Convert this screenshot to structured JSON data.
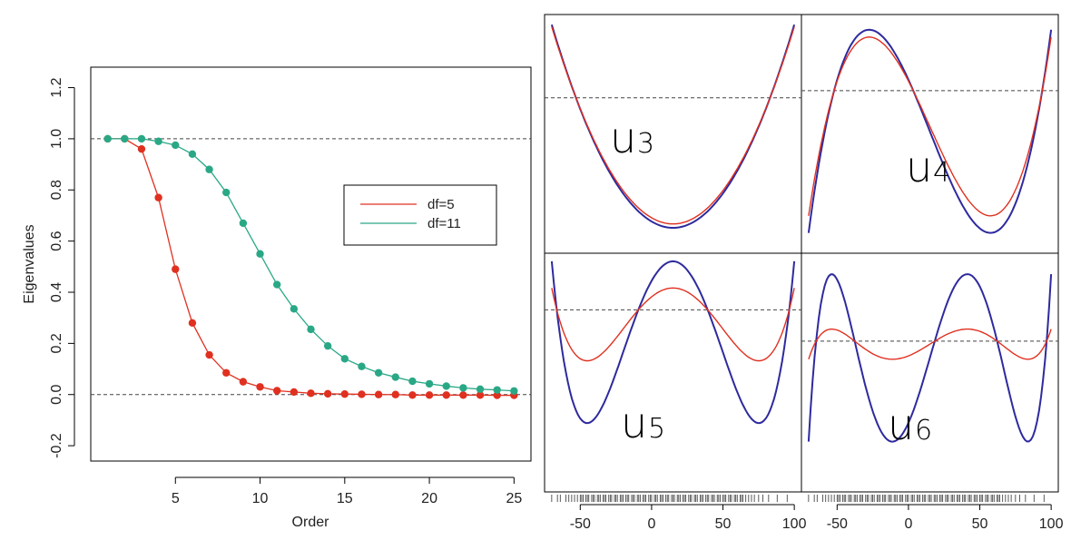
{
  "chart_data": [
    {
      "type": "line",
      "xlabel": "Order",
      "ylabel": "Eigenvalues",
      "xlim": [
        0,
        26
      ],
      "ylim": [
        -0.26,
        1.28
      ],
      "xticks": [
        5,
        10,
        15,
        20,
        25
      ],
      "yticks": [
        -0.2,
        0.0,
        0.2,
        0.4,
        0.6,
        0.8,
        1.0,
        1.2
      ],
      "xtick_labels": [
        "5",
        "10",
        "15",
        "20",
        "25"
      ],
      "ytick_labels": [
        "-0.2",
        "0.0",
        "0.2",
        "0.4",
        "0.6",
        "0.8",
        "1.0",
        "1.2"
      ],
      "reference_lines": [
        1.0,
        0.0
      ],
      "legend_position": "center-right",
      "x": [
        1,
        2,
        3,
        4,
        5,
        6,
        7,
        8,
        9,
        10,
        11,
        12,
        13,
        14,
        15,
        16,
        17,
        18,
        19,
        20,
        21,
        22,
        23,
        24,
        25
      ],
      "series": [
        {
          "name": "df=5",
          "color": "#e03020",
          "values": [
            1.0,
            1.0,
            0.96,
            0.77,
            0.49,
            0.28,
            0.155,
            0.085,
            0.05,
            0.03,
            0.015,
            0.01,
            0.005,
            0.003,
            0.002,
            0.001,
            0.0,
            0.0,
            -0.002,
            -0.002,
            -0.002,
            -0.002,
            -0.002,
            -0.003,
            -0.003
          ]
        },
        {
          "name": "df=11",
          "color": "#2aa886",
          "values": [
            1.0,
            1.0,
            1.0,
            0.99,
            0.975,
            0.94,
            0.88,
            0.79,
            0.67,
            0.55,
            0.43,
            0.335,
            0.255,
            0.19,
            0.14,
            0.11,
            0.085,
            0.068,
            0.052,
            0.042,
            0.033,
            0.026,
            0.021,
            0.018,
            0.014
          ]
        }
      ]
    },
    {
      "type": "line",
      "title": "u3",
      "label_main": "u",
      "label_sub": "3",
      "xlim": [
        -75,
        105
      ],
      "series": [
        {
          "name": "df=11",
          "color": "#2e2a9e",
          "role": "u3"
        },
        {
          "name": "df=5",
          "color": "#e03020",
          "role": "u3"
        }
      ]
    },
    {
      "type": "line",
      "title": "u4",
      "label_main": "u",
      "label_sub": "4",
      "xlim": [
        -75,
        105
      ],
      "series": [
        {
          "name": "df=11",
          "color": "#2e2a9e",
          "role": "u4"
        },
        {
          "name": "df=5",
          "color": "#e03020",
          "role": "u4"
        }
      ]
    },
    {
      "type": "line",
      "title": "u5",
      "label_main": "u",
      "label_sub": "5",
      "xlim": [
        -75,
        105
      ],
      "xticks": [
        -50,
        0,
        50,
        100
      ],
      "xtick_labels": [
        "-50",
        "0",
        "50",
        "100"
      ],
      "series": [
        {
          "name": "df=11",
          "color": "#2e2a9e",
          "role": "u5"
        },
        {
          "name": "df=5",
          "color": "#e03020",
          "role": "u5"
        }
      ]
    },
    {
      "type": "line",
      "title": "u6",
      "label_main": "u",
      "label_sub": "6",
      "xlim": [
        -75,
        105
      ],
      "xticks": [
        -50,
        0,
        50,
        100
      ],
      "xtick_labels": [
        "-50",
        "0",
        "50",
        "100"
      ],
      "series": [
        {
          "name": "df=11",
          "color": "#2e2a9e",
          "role": "u6"
        },
        {
          "name": "df=5",
          "color": "#e03020",
          "role": "u6"
        }
      ]
    }
  ],
  "rug": {
    "color": "#333333",
    "x": [
      -70,
      -66,
      -64,
      -60,
      -58,
      -56,
      -54,
      -52,
      -50,
      -49,
      -48,
      -46,
      -45,
      -44,
      -42,
      -41,
      -40,
      -38,
      -37,
      -36,
      -34,
      -33,
      -32,
      -30,
      -29,
      -28,
      -26,
      -25,
      -24,
      -22,
      -21,
      -20,
      -18,
      -17,
      -16,
      -14,
      -13,
      -12,
      -10,
      -9,
      -8,
      -6,
      -5,
      -4,
      -2,
      -1,
      0,
      2,
      3,
      4,
      6,
      7,
      8,
      10,
      11,
      12,
      14,
      15,
      16,
      18,
      19,
      20,
      22,
      23,
      24,
      26,
      27,
      28,
      30,
      31,
      32,
      34,
      35,
      36,
      38,
      39,
      40,
      42,
      43,
      44,
      46,
      47,
      48,
      50,
      51,
      52,
      54,
      55,
      56,
      58,
      59,
      60,
      62,
      63,
      64,
      66,
      68,
      70,
      72,
      75,
      78,
      82,
      88,
      95
    ]
  }
}
